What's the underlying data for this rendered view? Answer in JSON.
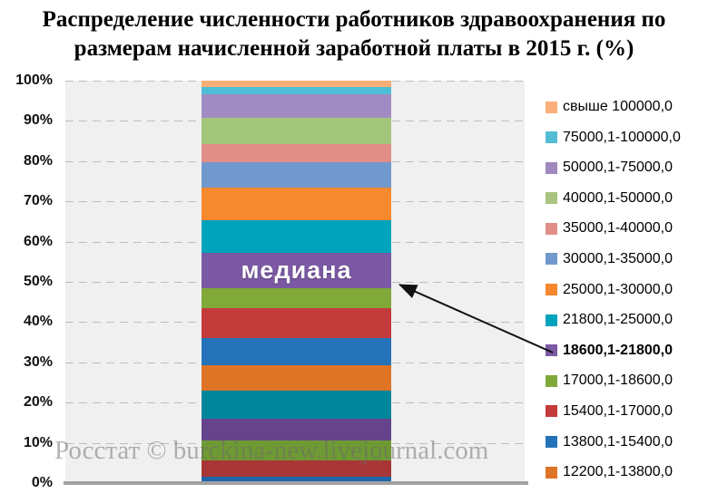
{
  "title": "Распределение численности работников здравоохранения по размерам начисленной заработной платы в 2015 г. (%)",
  "watermark": "Росстат © burckina-new.livejournal.com",
  "colors": {
    "plot_background": "#F0F0F0",
    "gridline": "#BDBDBD",
    "axis_line": "#A1A1A1",
    "arrow": "#111111",
    "median_text": "#ffffff"
  },
  "chart_data": {
    "type": "bar",
    "subtype": "stacked-100-percent-column",
    "title": "Распределение численности работников здравоохранения по размерам начисленной заработной платы в 2015 г. (%)",
    "xlabel": "",
    "ylabel": "",
    "ylim": [
      0,
      100
    ],
    "grid": "dashed-horizontal",
    "legend_position": "right",
    "y_ticks": [
      "100%",
      "90%",
      "80%",
      "70%",
      "60%",
      "50%",
      "40%",
      "30%",
      "20%",
      "10%",
      "0%"
    ],
    "annotation": {
      "text": "медиана",
      "target_series": "18600,1-21800,0"
    },
    "legend": [
      {
        "label": "свыше 100000,0",
        "color": "#FBAF7C",
        "bold": false
      },
      {
        "label": "75000,1-100000,0",
        "color": "#54BCD4",
        "bold": false
      },
      {
        "label": "50000,1-75000,0",
        "color": "#A189BE",
        "bold": false
      },
      {
        "label": "40000,1-50000,0",
        "color": "#A9C47F",
        "bold": false
      },
      {
        "label": "35000,1-40000,0",
        "color": "#E18D88",
        "bold": false
      },
      {
        "label": "30000,1-35000,0",
        "color": "#7199CD",
        "bold": false
      },
      {
        "label": "25000,1-30000,0",
        "color": "#F6882E",
        "bold": false
      },
      {
        "label": "21800,1-25000,0",
        "color": "#00A3BC",
        "bold": false
      },
      {
        "label": "18600,1-21800,0",
        "color": "#7C59A4",
        "bold": true
      },
      {
        "label": "17000,1-18600,0",
        "color": "#80A939",
        "bold": false
      },
      {
        "label": "15400,1-17000,0",
        "color": "#C43B3B",
        "bold": false
      },
      {
        "label": "13800,1-15400,0",
        "color": "#2473B9",
        "bold": false
      },
      {
        "label": "12200,1-13800,0",
        "color": "#DF7326",
        "bold": false
      }
    ],
    "segments_bottom_to_top": [
      {
        "label": "",
        "value": 1.6,
        "color": "#1E67AC"
      },
      {
        "label": "",
        "value": 4.0,
        "color": "#A83637"
      },
      {
        "label": "",
        "value": 5.0,
        "color": "#6E9A33"
      },
      {
        "label": "",
        "value": 5.4,
        "color": "#65448C"
      },
      {
        "label": "",
        "value": 7.0,
        "color": "#00869B"
      },
      {
        "label": "12200,1-13800,0",
        "value": 6.3,
        "color": "#DF7326"
      },
      {
        "label": "13800,1-15400,0",
        "value": 6.8,
        "color": "#2473B9"
      },
      {
        "label": "15400,1-17000,0",
        "value": 7.4,
        "color": "#C43B3B"
      },
      {
        "label": "17000,1-18600,0",
        "value": 5.0,
        "color": "#80A939"
      },
      {
        "label": "18600,1-21800,0",
        "value": 8.6,
        "color": "#7C59A4",
        "annotation": "медиана"
      },
      {
        "label": "21800,1-25000,0",
        "value": 8.1,
        "color": "#00A3BC"
      },
      {
        "label": "25000,1-30000,0",
        "value": 8.3,
        "color": "#F6882E"
      },
      {
        "label": "30000,1-35000,0",
        "value": 6.3,
        "color": "#7199CD"
      },
      {
        "label": "35000,1-40000,0",
        "value": 4.5,
        "color": "#E18D88"
      },
      {
        "label": "40000,1-50000,0",
        "value": 6.5,
        "color": "#A3C67C"
      },
      {
        "label": "50000,1-75000,0",
        "value": 5.9,
        "color": "#A08CC2"
      },
      {
        "label": "75000,1-100000,0",
        "value": 1.8,
        "color": "#4FBFD8"
      },
      {
        "label": "свыше 100000,0",
        "value": 1.5,
        "color": "#F8AE75"
      }
    ]
  }
}
